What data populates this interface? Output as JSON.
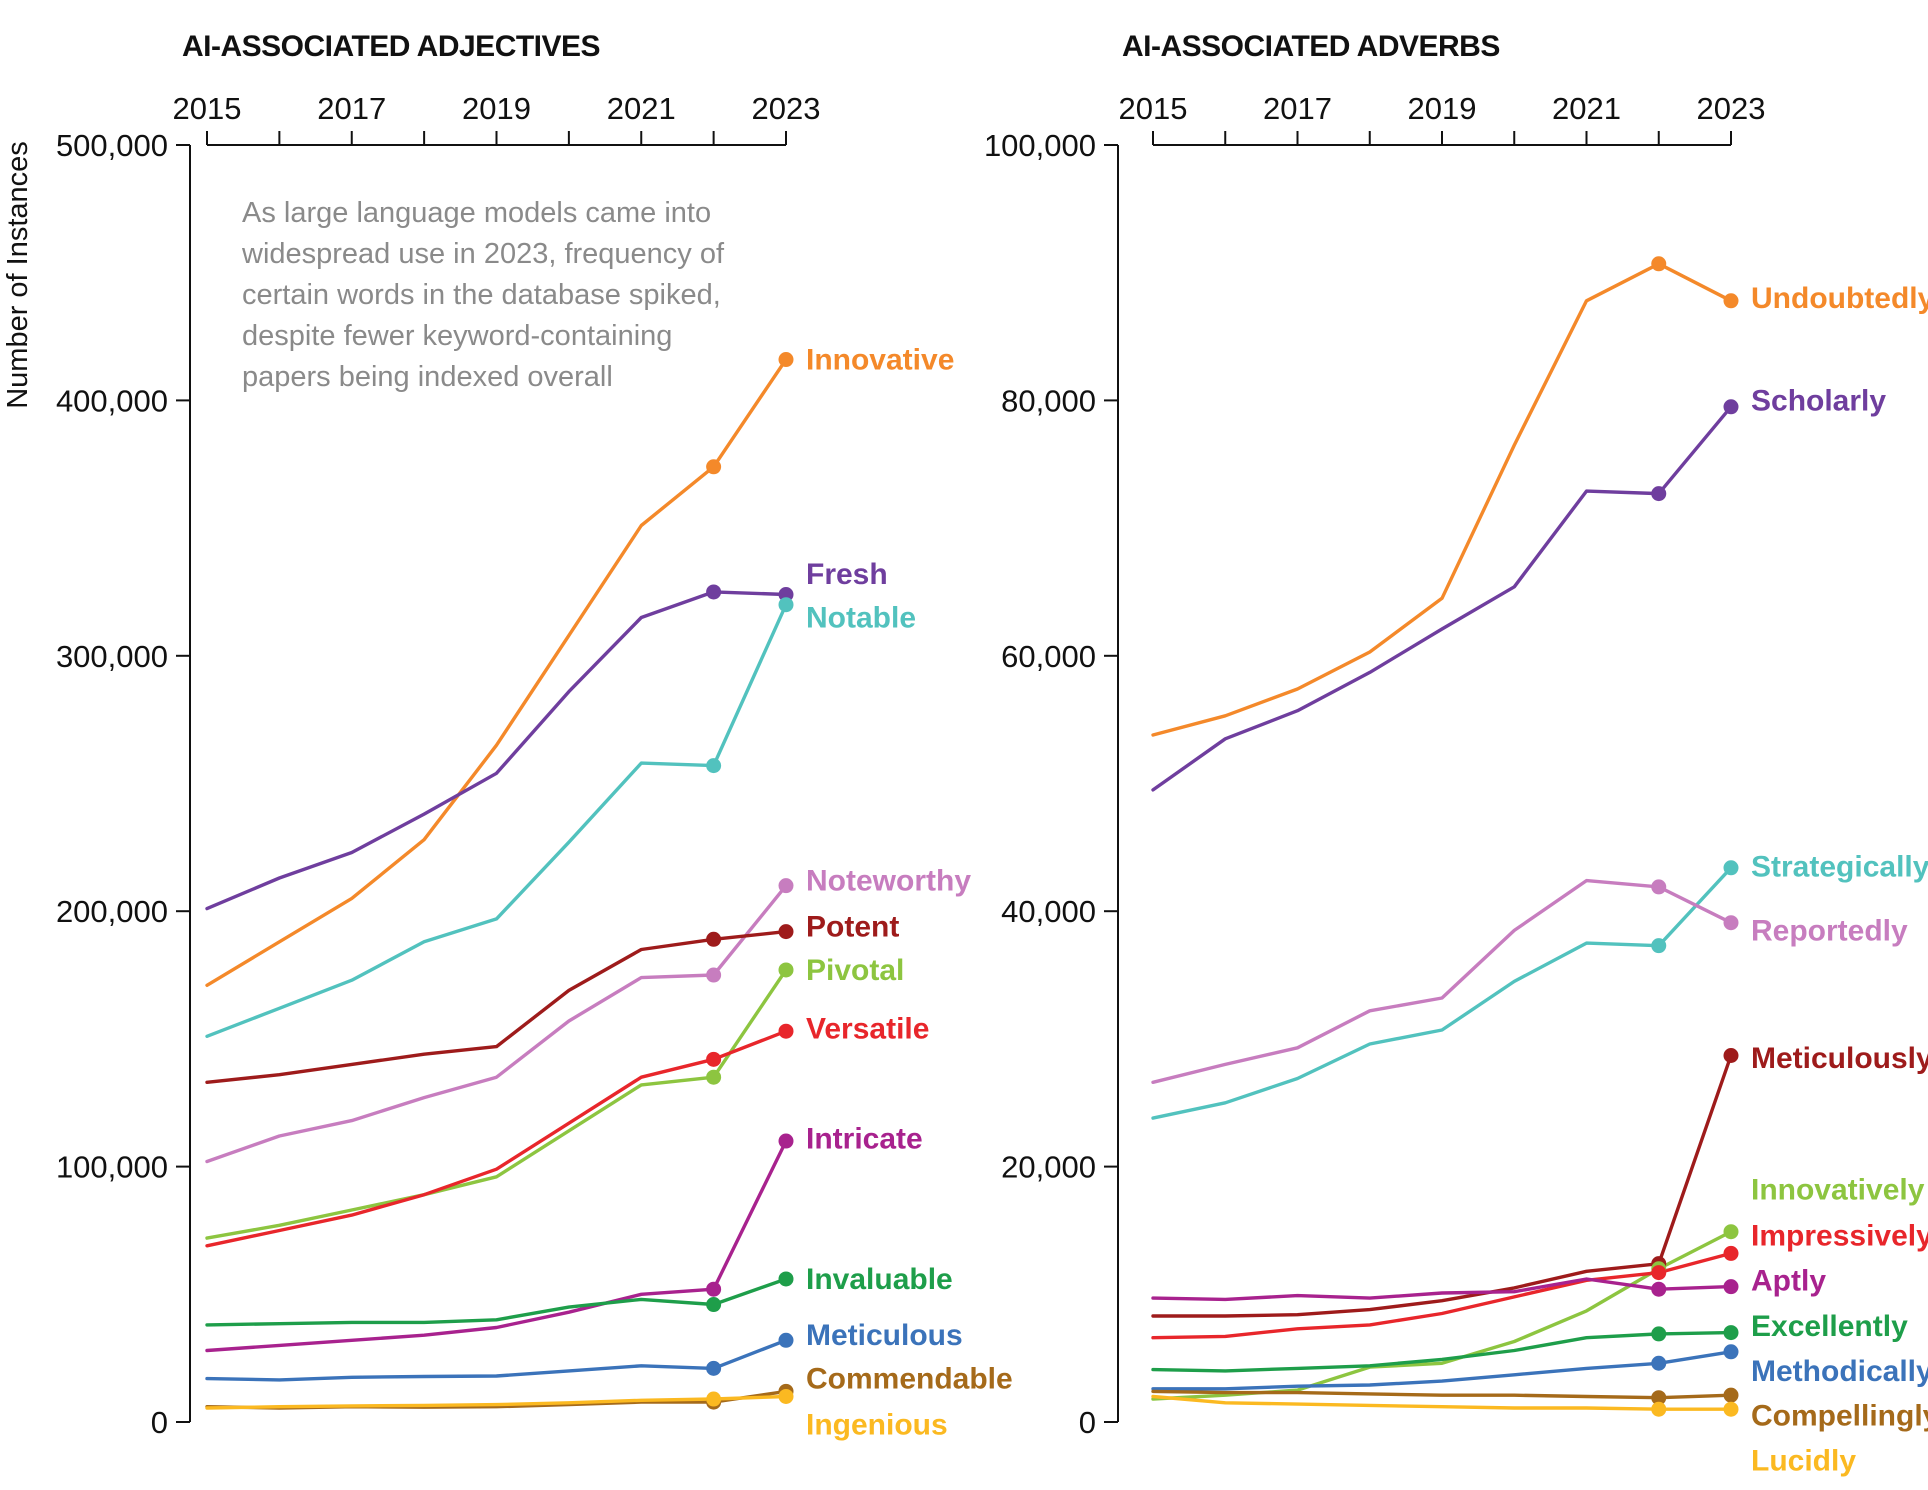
{
  "chart_data": [
    {
      "type": "line",
      "title": "AI-ASSOCIATED ADJECTIVES",
      "ylabel": "Number of Instances",
      "note": "As large language models came into widespread use in 2023, frequency of certain words in the database spiked, despite fewer keyword-containing papers being indexed overall",
      "note_lines": [
        "As large language models came into",
        "widespread use in 2023, frequency of",
        "certain words in the database spiked,",
        "despite fewer keyword-containing",
        "papers being indexed overall"
      ],
      "x": [
        2015,
        2016,
        2017,
        2018,
        2019,
        2020,
        2021,
        2022,
        2023
      ],
      "x_ticks": [
        "2015",
        "2017",
        "2019",
        "2021",
        "2023"
      ],
      "xlim": [
        2015,
        2023
      ],
      "ylim": [
        0,
        500000
      ],
      "y_ticks": [
        "0",
        "100,000",
        "200,000",
        "300,000",
        "400,000",
        "500,000"
      ],
      "y_tick_values": [
        0,
        100000,
        200000,
        300000,
        400000,
        500000
      ],
      "series": [
        {
          "name": "Innovative",
          "color": "#F4892A",
          "values": [
            171000,
            188000,
            205000,
            228000,
            265000,
            308000,
            351000,
            374000,
            416000
          ]
        },
        {
          "name": "Fresh",
          "color": "#6F3E9E",
          "values": [
            201000,
            213000,
            223000,
            238000,
            254000,
            286000,
            315000,
            325000,
            324000
          ]
        },
        {
          "name": "Notable",
          "color": "#52C2BE",
          "values": [
            151000,
            162000,
            173000,
            188000,
            197000,
            227000,
            258000,
            257000,
            320000
          ]
        },
        {
          "name": "Noteworthy",
          "color": "#C77DBF",
          "values": [
            102000,
            112000,
            118000,
            127000,
            135000,
            157000,
            174000,
            175000,
            210000
          ]
        },
        {
          "name": "Potent",
          "color": "#9E1B1B",
          "values": [
            133000,
            136000,
            140000,
            144000,
            147000,
            169000,
            185000,
            189000,
            192000
          ]
        },
        {
          "name": "Pivotal",
          "color": "#8DC540",
          "values": [
            72000,
            77000,
            83000,
            89000,
            96000,
            114000,
            132000,
            135000,
            177000
          ]
        },
        {
          "name": "Versatile",
          "color": "#E8262B",
          "values": [
            69000,
            75000,
            81000,
            89000,
            99000,
            117000,
            135000,
            142000,
            153000
          ]
        },
        {
          "name": "Intricate",
          "color": "#A8228E",
          "values": [
            28000,
            30000,
            32000,
            34000,
            37000,
            43000,
            50000,
            52000,
            110000
          ]
        },
        {
          "name": "Invaluable",
          "color": "#1E9E4A",
          "values": [
            38000,
            38500,
            39000,
            39000,
            40000,
            45000,
            48000,
            46000,
            56000
          ]
        },
        {
          "name": "Meticulous",
          "color": "#3B73BA",
          "values": [
            17000,
            16500,
            17500,
            17800,
            18000,
            20000,
            22000,
            21000,
            32000
          ]
        },
        {
          "name": "Commendable",
          "color": "#A56A1A",
          "values": [
            6000,
            5500,
            6000,
            5800,
            6000,
            6800,
            7800,
            7800,
            12000
          ]
        },
        {
          "name": "Ingenious",
          "color": "#FBB921",
          "values": [
            5500,
            6000,
            6300,
            6500,
            6800,
            7500,
            8500,
            9000,
            10000
          ]
        }
      ],
      "label_values": {
        "Innovative": 416000,
        "Fresh": 332000,
        "Notable": 315000,
        "Noteworthy": 212000,
        "Potent": 194000,
        "Pivotal": 177000,
        "Versatile": 154000,
        "Intricate": 111000,
        "Invaluable": 56000,
        "Meticulous": 34000,
        "Commendable": 17000,
        "Ingenious": -1000
      }
    },
    {
      "type": "line",
      "title": "AI-ASSOCIATED ADVERBS",
      "x": [
        2015,
        2016,
        2017,
        2018,
        2019,
        2020,
        2021,
        2022,
        2023
      ],
      "x_ticks": [
        "2015",
        "2017",
        "2019",
        "2021",
        "2023"
      ],
      "xlim": [
        2015,
        2023
      ],
      "ylim": [
        0,
        100000
      ],
      "y_ticks": [
        "0",
        "20,000",
        "40,000",
        "60,000",
        "80,000",
        "100,000"
      ],
      "y_tick_values": [
        0,
        20000,
        40000,
        60000,
        80000,
        100000
      ],
      "series": [
        {
          "name": "Undoubtedly",
          "color": "#F4892A",
          "values": [
            53800,
            55300,
            57400,
            60300,
            64500,
            76500,
            87800,
            90700,
            87800
          ]
        },
        {
          "name": "Scholarly",
          "color": "#6F3E9E",
          "values": [
            49500,
            53500,
            55700,
            58700,
            62100,
            65400,
            72900,
            72700,
            79500
          ]
        },
        {
          "name": "Strategically",
          "color": "#52C2BE",
          "values": [
            23800,
            25000,
            26900,
            29600,
            30700,
            34500,
            37500,
            37300,
            43400
          ]
        },
        {
          "name": "Reportedly",
          "color": "#C77DBF",
          "values": [
            26600,
            28000,
            29300,
            32200,
            33200,
            38500,
            42400,
            41900,
            39100
          ]
        },
        {
          "name": "Meticulously",
          "color": "#9E1B1B",
          "values": [
            8300,
            8300,
            8400,
            8800,
            9500,
            10500,
            11800,
            12400,
            28700
          ]
        },
        {
          "name": "Innovatively",
          "color": "#8DC540",
          "values": [
            1800,
            2100,
            2500,
            4300,
            4600,
            6300,
            8700,
            12000,
            14900
          ]
        },
        {
          "name": "Impressively",
          "color": "#E8262B",
          "values": [
            6600,
            6700,
            7300,
            7600,
            8500,
            9800,
            11100,
            11700,
            13200
          ]
        },
        {
          "name": "Aptly",
          "color": "#A8228E",
          "values": [
            9700,
            9600,
            9900,
            9700,
            10100,
            10200,
            11200,
            10400,
            10600
          ]
        },
        {
          "name": "Excellently",
          "color": "#1E9E4A",
          "values": [
            4100,
            4000,
            4200,
            4400,
            4900,
            5600,
            6600,
            6900,
            7000
          ]
        },
        {
          "name": "Methodically",
          "color": "#3B73BA",
          "values": [
            2600,
            2600,
            2800,
            2900,
            3200,
            3700,
            4200,
            4600,
            5500
          ]
        },
        {
          "name": "Compellingly",
          "color": "#A56A1A",
          "values": [
            2400,
            2300,
            2300,
            2200,
            2100,
            2100,
            2000,
            1900,
            2100
          ]
        },
        {
          "name": "Lucidly",
          "color": "#FBB921",
          "values": [
            2000,
            1500,
            1400,
            1300,
            1200,
            1100,
            1100,
            1000,
            1000
          ]
        }
      ],
      "label_values": {
        "Undoubtedly": 88000,
        "Scholarly": 80000,
        "Strategically": 43500,
        "Reportedly": 38500,
        "Meticulously": 28500,
        "Innovatively": 18200,
        "Impressively": 14600,
        "Aptly": 11100,
        "Excellently": 7500,
        "Methodically": 4000,
        "Compellingly": 500,
        "Lucidly": -3000
      }
    }
  ]
}
